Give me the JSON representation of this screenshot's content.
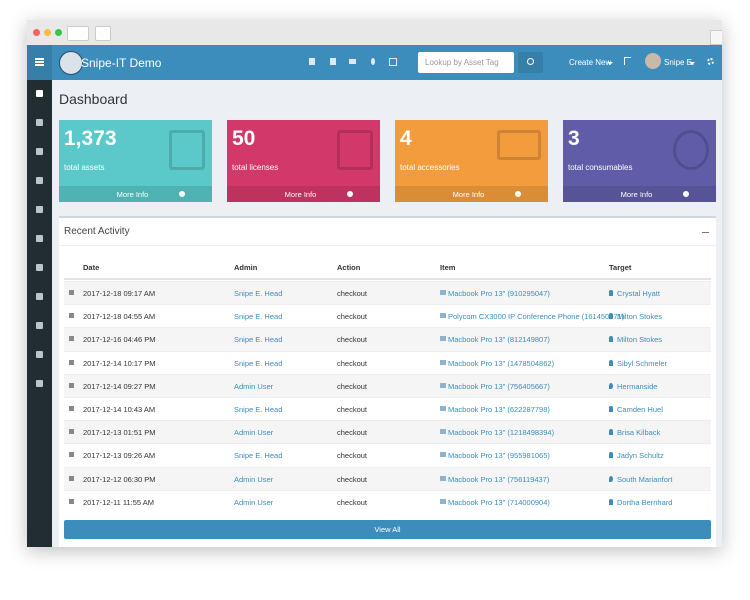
{
  "header": {
    "brand": "Snipe-IT Demo",
    "search_placeholder": "Lookup by Asset Tag",
    "create_new": "Create New",
    "user": "Snipe E."
  },
  "page": {
    "title": "Dashboard"
  },
  "stats": [
    {
      "value": "1,373",
      "label": "total assets",
      "link": "More Info"
    },
    {
      "value": "50",
      "label": "total licenses",
      "link": "More Info"
    },
    {
      "value": "4",
      "label": "total accessories",
      "link": "More Info"
    },
    {
      "value": "3",
      "label": "total consumables",
      "link": "More Info"
    }
  ],
  "activity": {
    "title": "Recent Activity",
    "columns": [
      "Date",
      "Admin",
      "Action",
      "Item",
      "Target"
    ],
    "rows": [
      [
        "2017-12-18 09:17 AM",
        "Snipe E. Head",
        "checkout",
        "Macbook Pro 13\" (910295047)",
        "Crystal Hyatt"
      ],
      [
        "2017-12-18 04:55 AM",
        "Snipe E. Head",
        "checkout",
        "Polycom CX3000 IP Conference Phone (161450171)",
        "Milton Stokes"
      ],
      [
        "2017-12-16 04:46 PM",
        "Snipe E. Head",
        "checkout",
        "Macbook Pro 13\" (812149807)",
        "Milton Stokes"
      ],
      [
        "2017-12-14 10:17 PM",
        "Snipe E. Head",
        "checkout",
        "Macbook Pro 13\" (1478504862)",
        "Sibyl Schmeler"
      ],
      [
        "2017-12-14 09:27 PM",
        "Admin User",
        "checkout",
        "Macbook Pro 13\" (756405667)",
        "Hermanside"
      ],
      [
        "2017-12-14 10:43 AM",
        "Snipe E. Head",
        "checkout",
        "Macbook Pro 13\" (622287798)",
        "Camden Huel"
      ],
      [
        "2017-12-13 01:51 PM",
        "Admin User",
        "checkout",
        "Macbook Pro 13\" (1218498394)",
        "Brisa Kilback"
      ],
      [
        "2017-12-13 09:26 AM",
        "Snipe E. Head",
        "checkout",
        "Macbook Pro 13\" (955981065)",
        "Jadyn Schultz"
      ],
      [
        "2017-12-12 06:30 PM",
        "Admin User",
        "checkout",
        "Macbook Pro 13\" (756119437)",
        "South Marianfort"
      ],
      [
        "2017-12-11 11:55 AM",
        "Admin User",
        "checkout",
        "Macbook Pro 13\" (714000904)",
        "Dortha Bernhard"
      ]
    ],
    "view_all": "View All"
  }
}
